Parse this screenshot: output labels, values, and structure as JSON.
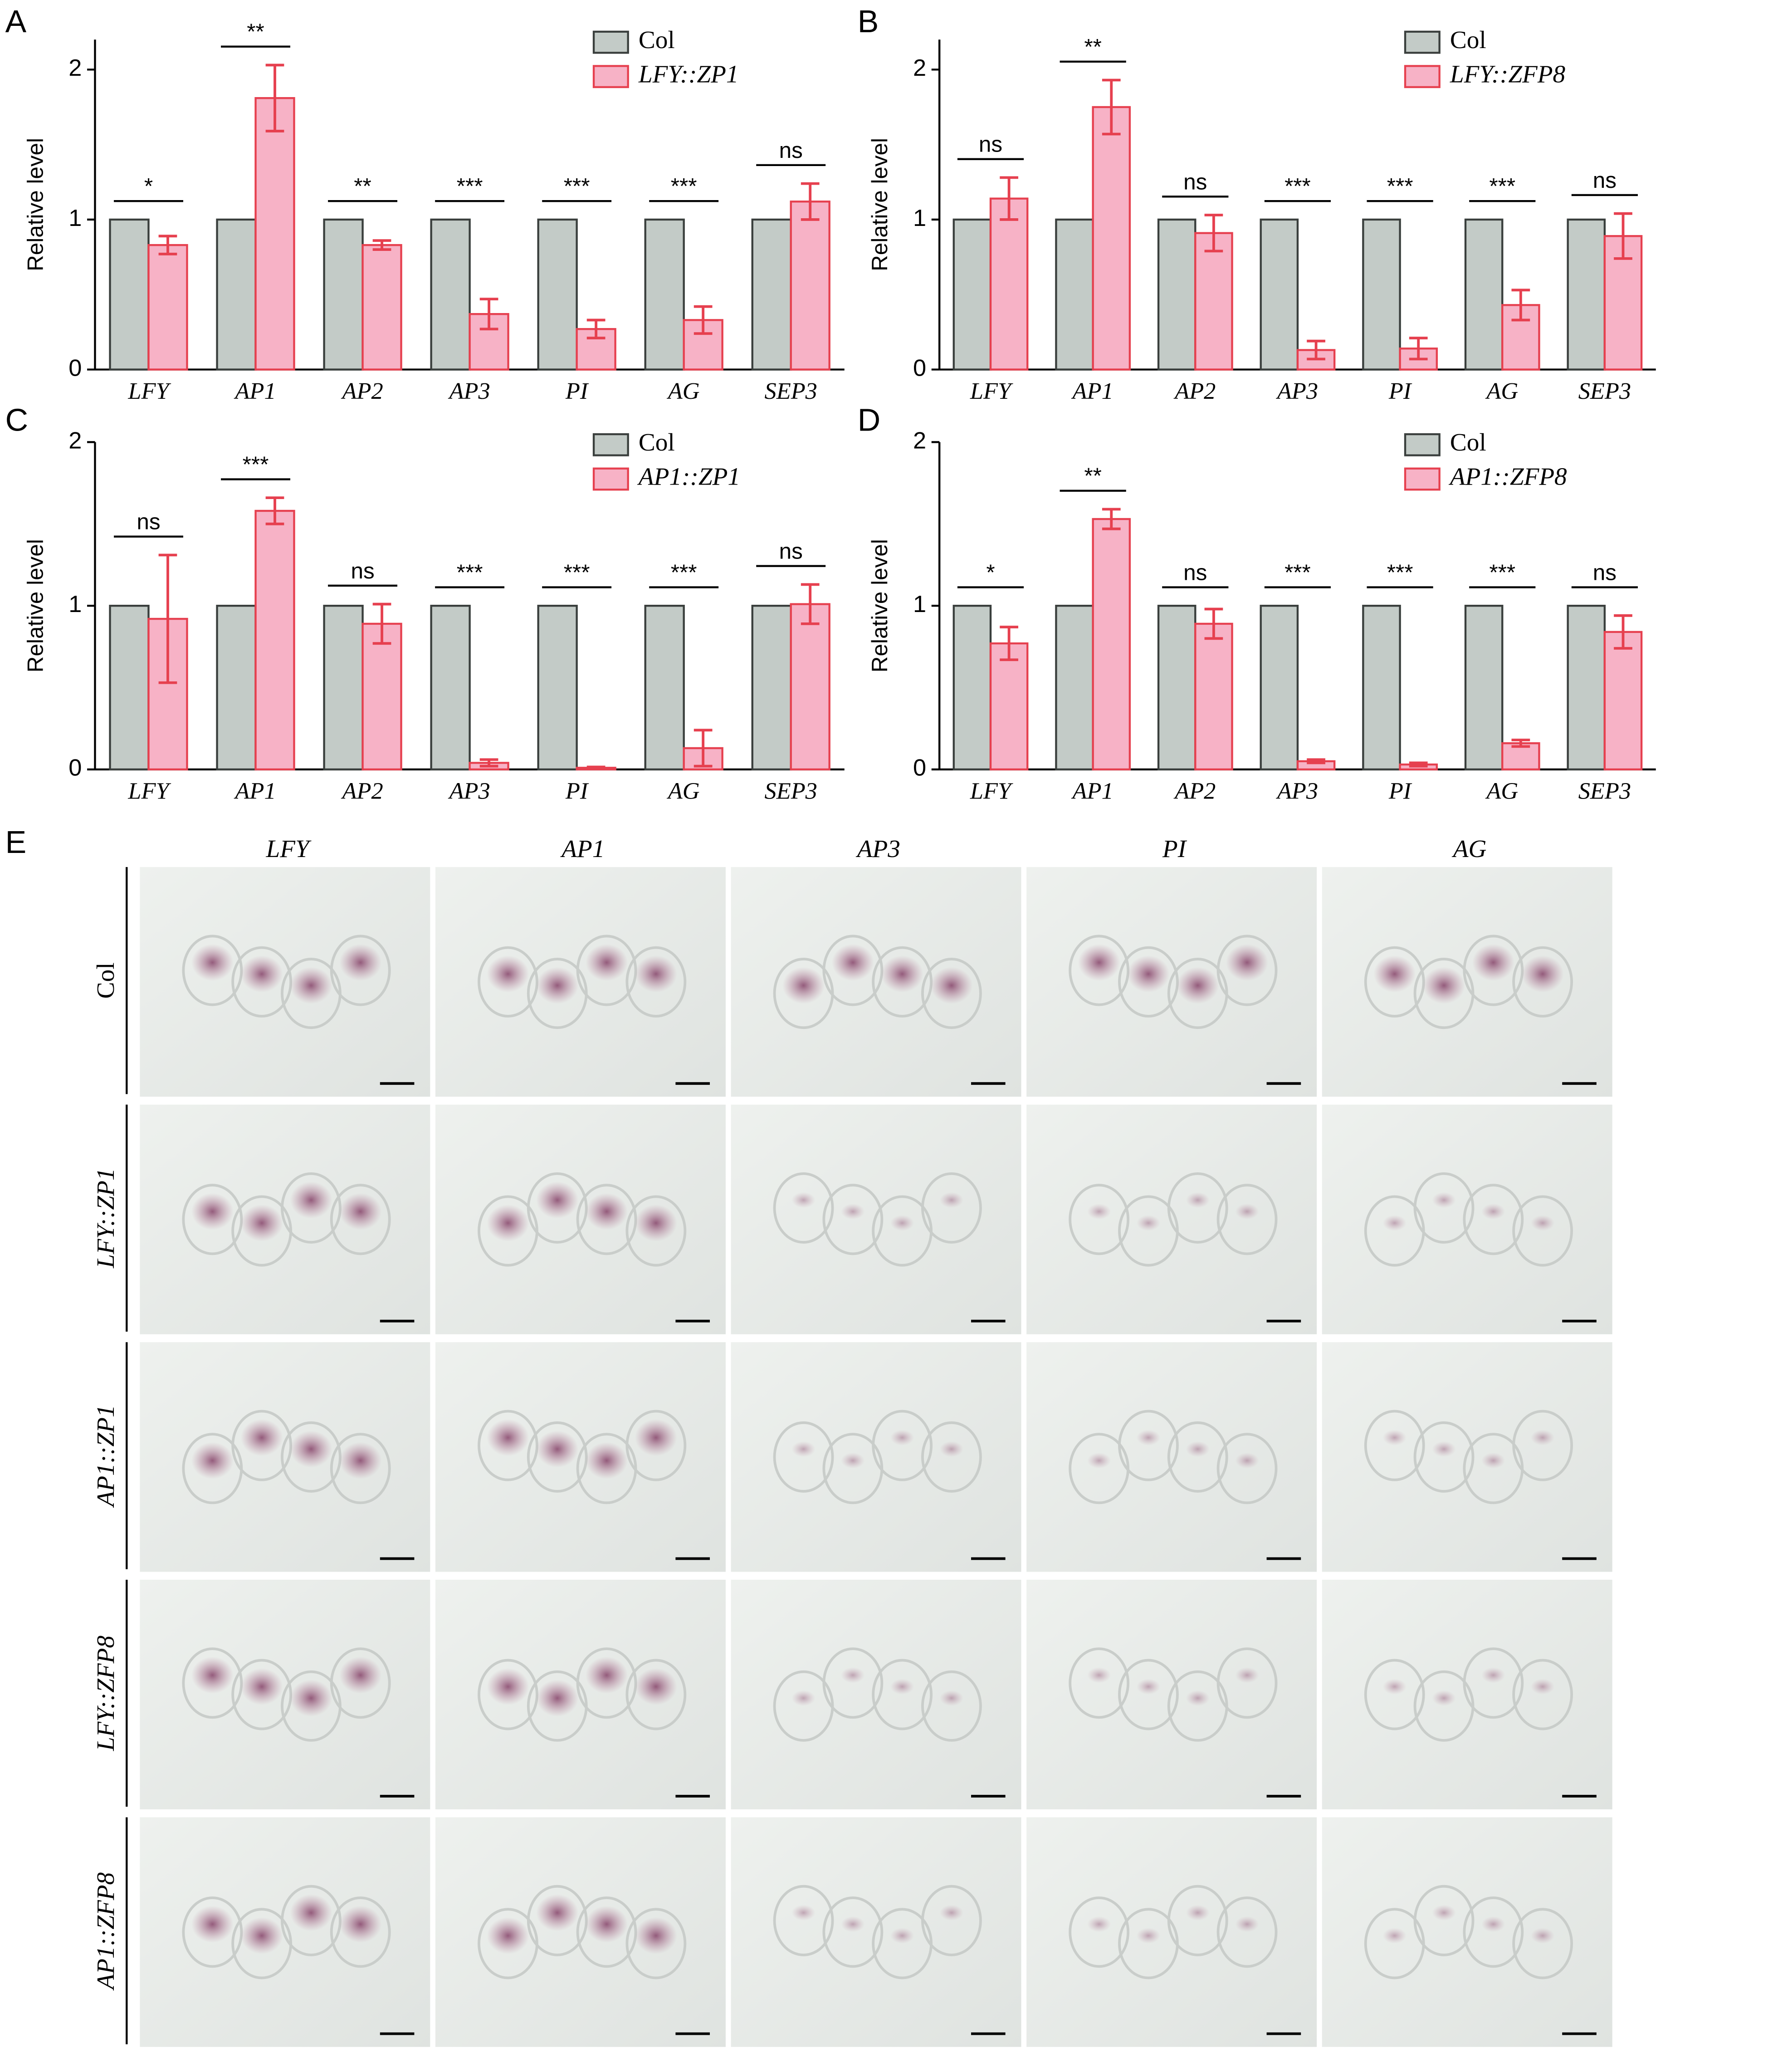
{
  "chart_data": [
    {
      "type": "bar",
      "panel": "A",
      "ylabel": "Relative level",
      "categories": [
        "LFY",
        "AP1",
        "AP2",
        "AP3",
        "PI",
        "AG",
        "SEP3"
      ],
      "series": [
        {
          "name": "Col",
          "color": "#c3cbc7",
          "edgecolor": "#3a3f3d",
          "values": [
            1,
            1,
            1,
            1,
            1,
            1,
            1
          ]
        },
        {
          "name": "LFY::ZP1",
          "color": "#f7b2c6",
          "edgecolor": "#e6404f",
          "values": [
            0.83,
            1.81,
            0.83,
            0.37,
            0.27,
            0.33,
            1.12
          ],
          "errors": [
            0.06,
            0.22,
            0.03,
            0.1,
            0.06,
            0.09,
            0.12
          ]
        }
      ],
      "annotations": [
        "*",
        "**",
        "**",
        "***",
        "***",
        "***",
        "ns"
      ],
      "ylim": [
        0,
        2.2
      ],
      "yticks": [
        0,
        1,
        2
      ],
      "legend": "upper right"
    },
    {
      "type": "bar",
      "panel": "B",
      "ylabel": "Relative level",
      "categories": [
        "LFY",
        "AP1",
        "AP2",
        "AP3",
        "PI",
        "AG",
        "SEP3"
      ],
      "series": [
        {
          "name": "Col",
          "color": "#c3cbc7",
          "edgecolor": "#3a3f3d",
          "values": [
            1,
            1,
            1,
            1,
            1,
            1,
            1
          ]
        },
        {
          "name": "LFY::ZFP8",
          "color": "#f7b2c6",
          "edgecolor": "#e6404f",
          "values": [
            1.14,
            1.75,
            0.91,
            0.13,
            0.14,
            0.43,
            0.89
          ],
          "errors": [
            0.14,
            0.18,
            0.12,
            0.06,
            0.07,
            0.1,
            0.15
          ]
        }
      ],
      "annotations": [
        "ns",
        "**",
        "ns",
        "***",
        "***",
        "***",
        "ns"
      ],
      "ylim": [
        0,
        2.2
      ],
      "yticks": [
        0,
        1,
        2
      ],
      "legend": "upper right"
    },
    {
      "type": "bar",
      "panel": "C",
      "ylabel": "Relative level",
      "categories": [
        "LFY",
        "AP1",
        "AP2",
        "AP3",
        "PI",
        "AG",
        "SEP3"
      ],
      "series": [
        {
          "name": "Col",
          "color": "#c3cbc7",
          "edgecolor": "#3a3f3d",
          "values": [
            1,
            1,
            1,
            1,
            1,
            1,
            1
          ]
        },
        {
          "name": "AP1::ZP1",
          "color": "#f7b2c6",
          "edgecolor": "#e6404f",
          "values": [
            0.92,
            1.58,
            0.89,
            0.04,
            0.01,
            0.13,
            1.01
          ],
          "errors": [
            0.39,
            0.08,
            0.12,
            0.02,
            0.005,
            0.11,
            0.12
          ]
        }
      ],
      "annotations": [
        "ns",
        "***",
        "ns",
        "***",
        "***",
        "***",
        "ns"
      ],
      "ylim": [
        0,
        2
      ],
      "yticks": [
        0,
        1,
        2
      ],
      "legend": "upper right"
    },
    {
      "type": "bar",
      "panel": "D",
      "ylabel": "Relative level",
      "categories": [
        "LFY",
        "AP1",
        "AP2",
        "AP3",
        "PI",
        "AG",
        "SEP3"
      ],
      "series": [
        {
          "name": "Col",
          "color": "#c3cbc7",
          "edgecolor": "#3a3f3d",
          "values": [
            1,
            1,
            1,
            1,
            1,
            1,
            1
          ]
        },
        {
          "name": "AP1::ZFP8",
          "color": "#f7b2c6",
          "edgecolor": "#e6404f",
          "values": [
            0.77,
            1.53,
            0.89,
            0.05,
            0.03,
            0.16,
            0.84
          ],
          "errors": [
            0.1,
            0.06,
            0.09,
            0.01,
            0.01,
            0.02,
            0.1
          ]
        }
      ],
      "annotations": [
        "*",
        "**",
        "ns",
        "***",
        "***",
        "***",
        "ns"
      ],
      "ylim": [
        0,
        2
      ],
      "yticks": [
        0,
        1,
        2
      ],
      "legend": "upper right"
    }
  ],
  "panel_e": {
    "panel": "E",
    "columns": [
      "LFY",
      "AP1",
      "AP3",
      "PI",
      "AG"
    ],
    "rows": [
      "Col",
      "LFY::ZP1",
      "AP1::ZP1",
      "LFY::ZFP8",
      "AP1::ZFP8"
    ]
  }
}
